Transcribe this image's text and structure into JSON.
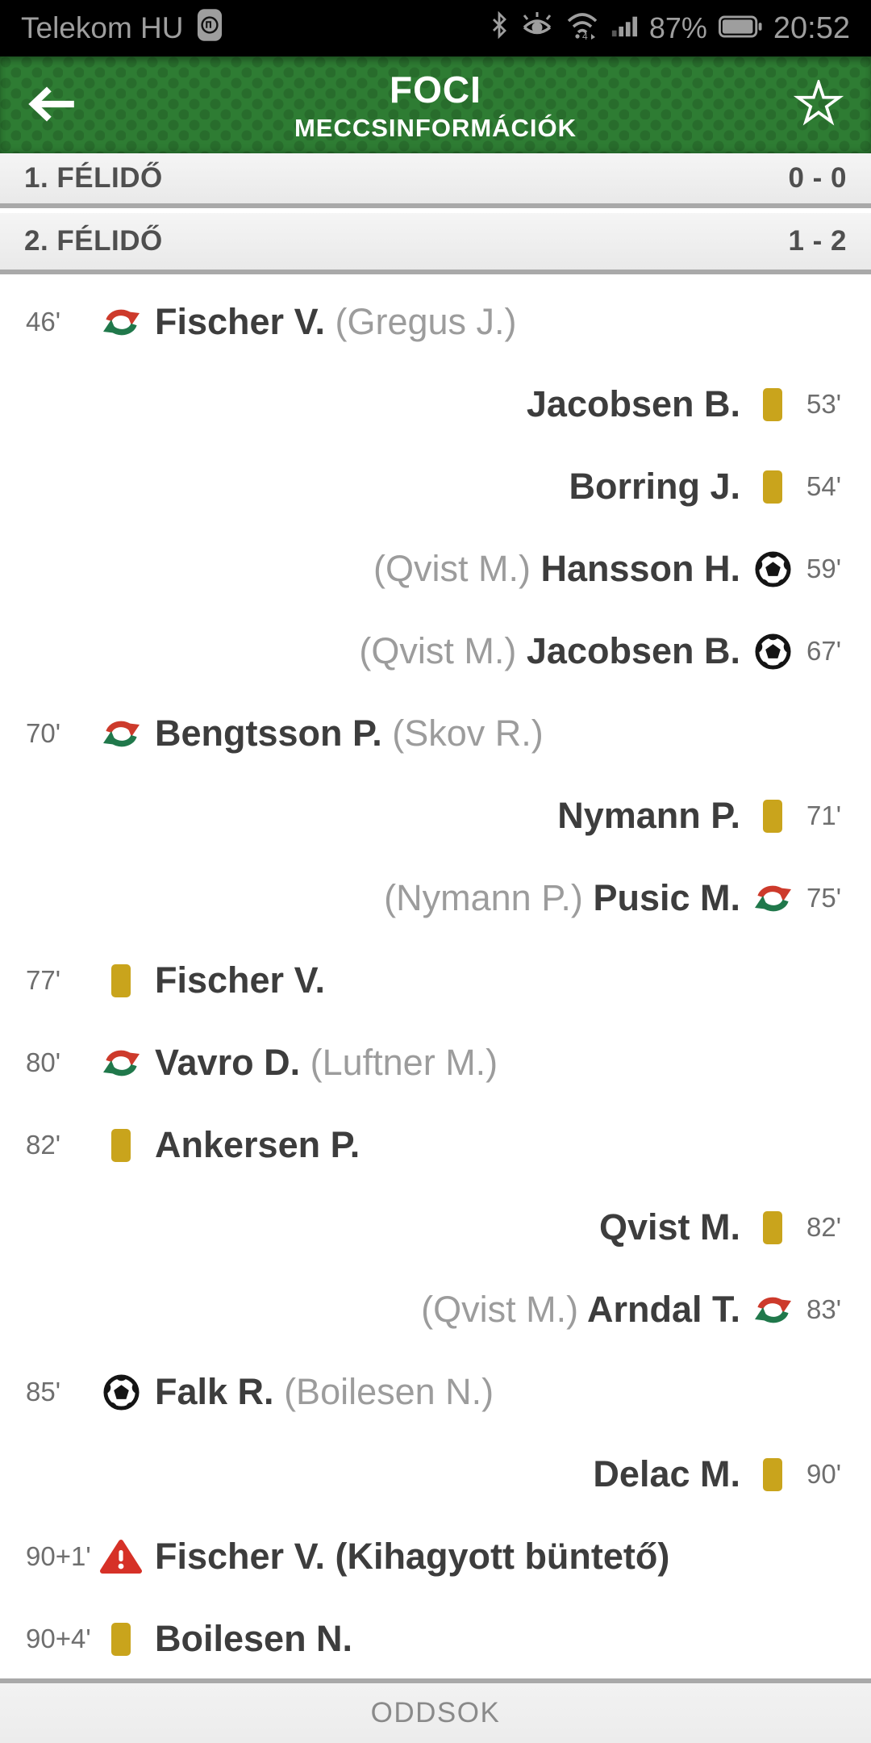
{
  "status_bar": {
    "carrier": "Telekom HU",
    "battery_percent": "87%",
    "clock": "20:52",
    "icons": [
      "app-badge-icon",
      "bluetooth-icon",
      "eye-comfort-icon",
      "wifi-icon",
      "signal-icon",
      "battery-icon"
    ]
  },
  "app_bar": {
    "title": "FOCI",
    "subtitle": "MECCSINFORMÁCIÓK",
    "left_icon": "back-arrow-icon",
    "right_icon": "favorite-star-icon"
  },
  "sections": [
    {
      "label": "1. FÉLIDŐ",
      "score": "0 - 0"
    },
    {
      "label": "2. FÉLIDŐ",
      "score": "1 - 2"
    }
  ],
  "events": [
    {
      "side": "home",
      "time": "46'",
      "type": "substitution",
      "player": "Fischer V.",
      "detail": "(Gregus J.)"
    },
    {
      "side": "away",
      "time": "53'",
      "type": "yellow-card",
      "player": "Jacobsen B.",
      "detail": ""
    },
    {
      "side": "away",
      "time": "54'",
      "type": "yellow-card",
      "player": "Borring J.",
      "detail": ""
    },
    {
      "side": "away",
      "time": "59'",
      "type": "goal",
      "player": "Hansson H.",
      "detail": "(Qvist M.)"
    },
    {
      "side": "away",
      "time": "67'",
      "type": "goal",
      "player": "Jacobsen B.",
      "detail": "(Qvist M.)"
    },
    {
      "side": "home",
      "time": "70'",
      "type": "substitution",
      "player": "Bengtsson P.",
      "detail": "(Skov R.)"
    },
    {
      "side": "away",
      "time": "71'",
      "type": "yellow-card",
      "player": "Nymann P.",
      "detail": ""
    },
    {
      "side": "away",
      "time": "75'",
      "type": "substitution",
      "player": "Pusic M.",
      "detail": "(Nymann P.)"
    },
    {
      "side": "home",
      "time": "77'",
      "type": "yellow-card",
      "player": "Fischer V.",
      "detail": ""
    },
    {
      "side": "home",
      "time": "80'",
      "type": "substitution",
      "player": "Vavro D.",
      "detail": "(Luftner M.)"
    },
    {
      "side": "home",
      "time": "82'",
      "type": "yellow-card",
      "player": "Ankersen P.",
      "detail": ""
    },
    {
      "side": "away",
      "time": "82'",
      "type": "yellow-card",
      "player": "Qvist M.",
      "detail": ""
    },
    {
      "side": "away",
      "time": "83'",
      "type": "substitution",
      "player": "Arndal T.",
      "detail": "(Qvist M.)"
    },
    {
      "side": "home",
      "time": "85'",
      "type": "goal",
      "player": "Falk R.",
      "detail": "(Boilesen N.)"
    },
    {
      "side": "away",
      "time": "90'",
      "type": "yellow-card",
      "player": "Delac M.",
      "detail": ""
    },
    {
      "side": "home",
      "time": "90+1'",
      "type": "missed-penalty",
      "player": "Fischer V. (Kihagyott büntető)",
      "detail": ""
    },
    {
      "side": "home",
      "time": "90+4'",
      "type": "yellow-card",
      "player": "Boilesen N.",
      "detail": ""
    }
  ],
  "footer": {
    "label": "ODDSOK"
  },
  "colors": {
    "header_green": "#2e7c33",
    "yellow_card": "#c9a41c",
    "sub_red": "#cd3a2b",
    "sub_green": "#20784b",
    "alert_red": "#d63127",
    "ball_black": "#141414",
    "name_dark": "#3d3d3d",
    "assist_gray": "#9c9c9c",
    "time_gray": "#6e6e6e"
  }
}
